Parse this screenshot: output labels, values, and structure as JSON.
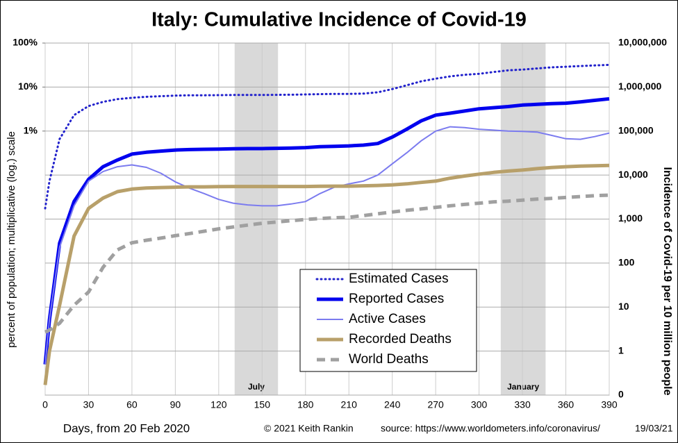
{
  "chart_data": {
    "type": "line",
    "title": "Italy: Cumulative Incidence of Covid-19",
    "xlabel": "Days, from 20 Feb 2020",
    "ylabel": "percent of population; multiplicative (log.) scale",
    "y2label": "Incidence of Covid-19 per 10 million people",
    "footer": [
      "© 2021  Keith Rankin",
      "source:  https://www.worldometers.info/coronavirus/",
      "19/03/21"
    ],
    "log_scale": true,
    "grid": true,
    "legend": "lower center",
    "shaded": [
      {
        "label": "July",
        "start": 131,
        "end": 161
      },
      {
        "label": "January",
        "start": 315,
        "end": 346
      }
    ],
    "xlim": [
      0,
      390
    ],
    "xticks": [
      0,
      30,
      60,
      90,
      120,
      150,
      180,
      210,
      240,
      270,
      300,
      330,
      360,
      390
    ],
    "ylim": [
      1e-06,
      100
    ],
    "yticks": [
      {
        "value": 100,
        "label": "100%"
      },
      {
        "value": 10,
        "label": "10%"
      },
      {
        "value": 1,
        "label": "1%"
      }
    ],
    "y2lim": [
      0.1,
      10000000
    ],
    "y2ticks": [
      {
        "value": 0.1,
        "label": "0"
      },
      1,
      10,
      100,
      {
        "value": 1000,
        "label": "1,000"
      },
      {
        "value": 10000,
        "label": "10,000"
      },
      {
        "value": 100000,
        "label": "100,000"
      },
      {
        "value": 1000000,
        "label": "1,000,000"
      },
      {
        "value": 10000000,
        "label": "10,000,000"
      }
    ],
    "x": [
      0,
      3,
      10,
      20,
      30,
      40,
      50,
      60,
      70,
      80,
      90,
      100,
      110,
      120,
      130,
      140,
      150,
      160,
      170,
      180,
      190,
      200,
      210,
      220,
      230,
      240,
      250,
      260,
      270,
      280,
      290,
      300,
      310,
      320,
      330,
      340,
      350,
      360,
      370,
      380,
      390
    ],
    "series": [
      {
        "name": "Estimated Cases",
        "color": "#2222cc",
        "style": "dotted",
        "axis": "y2",
        "values": [
          1750,
          7300,
          66000,
          230000,
          370000,
          460000,
          530000,
          570000,
          600000,
          620000,
          640000,
          650000,
          650000,
          655000,
          660000,
          660000,
          660000,
          665000,
          670000,
          680000,
          690000,
          700000,
          700000,
          710000,
          760000,
          900000,
          1100000,
          1350000,
          1550000,
          1750000,
          1900000,
          2000000,
          2200000,
          2400000,
          2500000,
          2650000,
          2800000,
          2900000,
          3000000,
          3100000,
          3200000
        ]
      },
      {
        "name": "Reported Cases",
        "color": "#0000ee",
        "style": "solid",
        "axis": "y2",
        "values": [
          0.5,
          5.2,
          283,
          2500,
          8000,
          15500,
          22000,
          30000,
          33000,
          35000,
          37000,
          38000,
          38500,
          39000,
          39500,
          40000,
          40000,
          40500,
          41000,
          42000,
          44000,
          45000,
          46000,
          48000,
          52000,
          73000,
          110000,
          170000,
          230000,
          255000,
          285000,
          320000,
          340000,
          360000,
          390000,
          405000,
          420000,
          430000,
          460000,
          500000,
          540000
        ]
      },
      {
        "name": " Active Cases",
        "color": "#7b7bef",
        "style": "thin",
        "axis": "y2",
        "values": [
          0.5,
          5.2,
          230,
          2000,
          7300,
          12000,
          15500,
          17000,
          15000,
          11000,
          7000,
          5000,
          3800,
          2800,
          2300,
          2100,
          2000,
          2000,
          2200,
          2500,
          3800,
          5300,
          6300,
          7300,
          10000,
          18000,
          32000,
          60000,
          100000,
          125000,
          120000,
          110000,
          105000,
          100000,
          98000,
          95000,
          80000,
          67000,
          65000,
          75000,
          90000
        ]
      },
      {
        "name": "Recorded Deaths",
        "color": "#b8a06a",
        "style": "solid",
        "axis": "y2",
        "values": [
          0.17,
          1,
          11,
          410,
          1750,
          3000,
          4200,
          4800,
          5100,
          5200,
          5300,
          5400,
          5400,
          5450,
          5500,
          5500,
          5500,
          5500,
          5500,
          5500,
          5550,
          5600,
          5600,
          5700,
          5800,
          6000,
          6300,
          6800,
          7300,
          8500,
          9500,
          10500,
          11500,
          12300,
          13000,
          14000,
          14800,
          15500,
          16000,
          16200,
          16500
        ]
      },
      {
        "name": "World Deaths",
        "color": "#a0a0a0",
        "style": "dashed",
        "axis": "y2",
        "values": [
          2.7,
          3,
          4.3,
          11,
          22,
          80,
          200,
          290,
          330,
          370,
          420,
          470,
          530,
          600,
          660,
          730,
          800,
          860,
          920,
          980,
          1030,
          1070,
          1100,
          1200,
          1320,
          1450,
          1580,
          1700,
          1850,
          2000,
          2150,
          2300,
          2450,
          2550,
          2700,
          2850,
          2950,
          3100,
          3250,
          3400,
          3500
        ]
      }
    ]
  }
}
